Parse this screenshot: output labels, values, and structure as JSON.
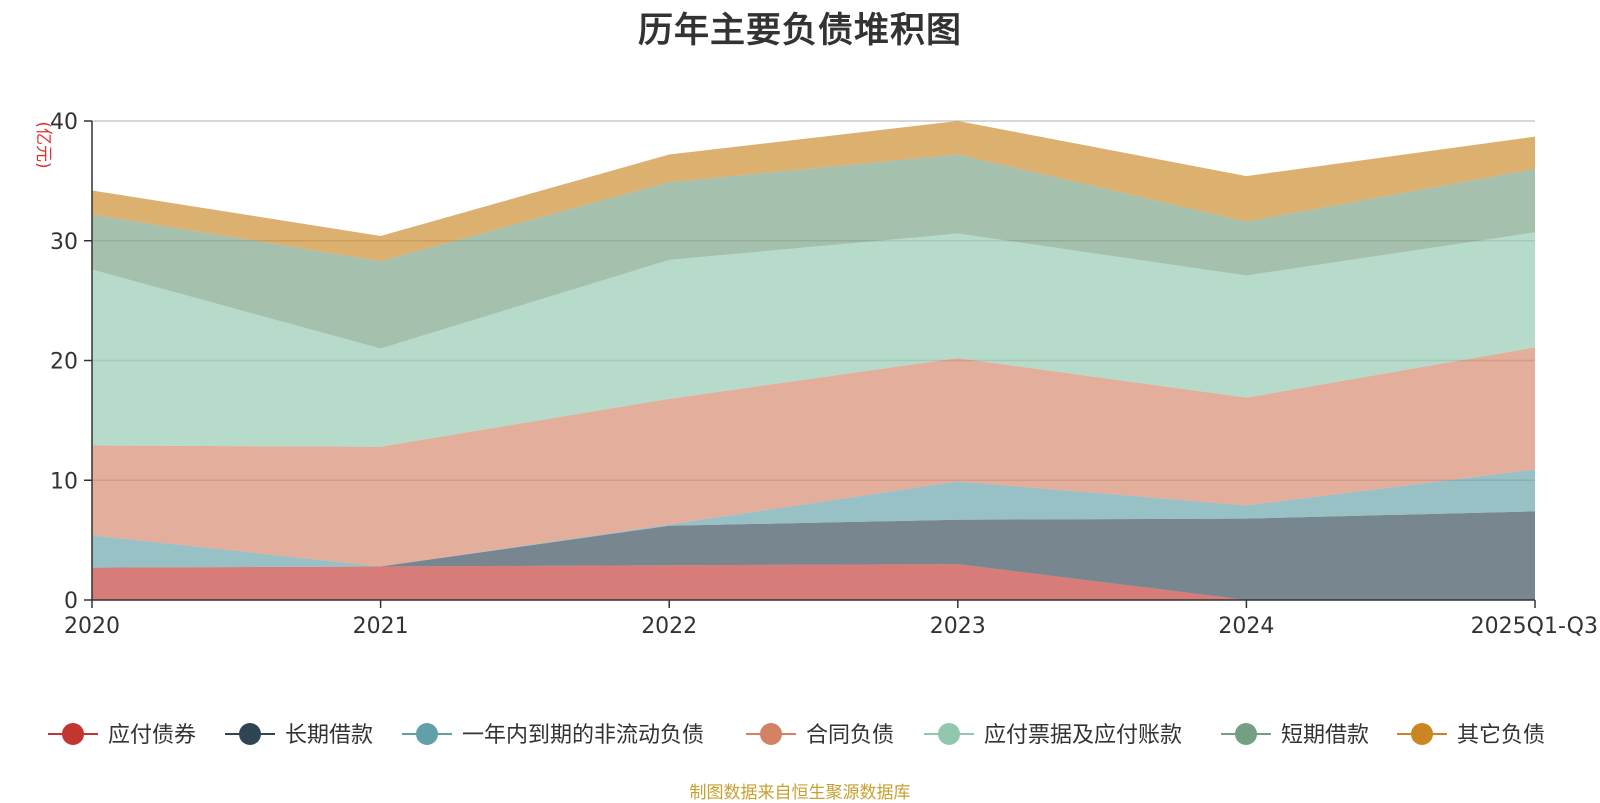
{
  "chart_data": {
    "type": "area",
    "stacked": true,
    "title": "历年主要负债堆积图",
    "unit_label": "(亿元)",
    "source_note": "制图数据来自恒生聚源数据库",
    "categories": [
      "2020",
      "2021",
      "2022",
      "2023",
      "2024",
      "2025Q1-Q3"
    ],
    "ylim": [
      0,
      40
    ],
    "yticks": [
      0,
      10,
      20,
      30,
      40
    ],
    "grid": true,
    "legend_position": "bottom",
    "series": [
      {
        "name": "应付债券",
        "color": "#c23531",
        "values": [
          2.7,
          2.8,
          2.9,
          3.0,
          0.0,
          0.0
        ]
      },
      {
        "name": "长期借款",
        "color": "#2f4554",
        "values": [
          0.0,
          0.0,
          3.3,
          3.7,
          6.8,
          7.4
        ]
      },
      {
        "name": "一年内到期的非流动负债",
        "color": "#61a0a8",
        "values": [
          2.7,
          0.0,
          0.1,
          3.2,
          1.1,
          3.5
        ]
      },
      {
        "name": "合同负债",
        "color": "#d48265",
        "values": [
          7.5,
          10.0,
          10.5,
          10.3,
          9.0,
          10.2
        ]
      },
      {
        "name": "应付票据及应付账款",
        "color": "#91c7ae",
        "values": [
          14.7,
          8.2,
          11.6,
          10.4,
          10.2,
          9.6
        ]
      },
      {
        "name": "短期借款",
        "color": "#749f83",
        "values": [
          4.6,
          7.3,
          6.5,
          6.6,
          4.5,
          5.3
        ]
      },
      {
        "name": "其它负债",
        "color": "#ca8622",
        "values": [
          2.0,
          2.1,
          2.3,
          2.8,
          3.8,
          2.7
        ]
      }
    ]
  }
}
